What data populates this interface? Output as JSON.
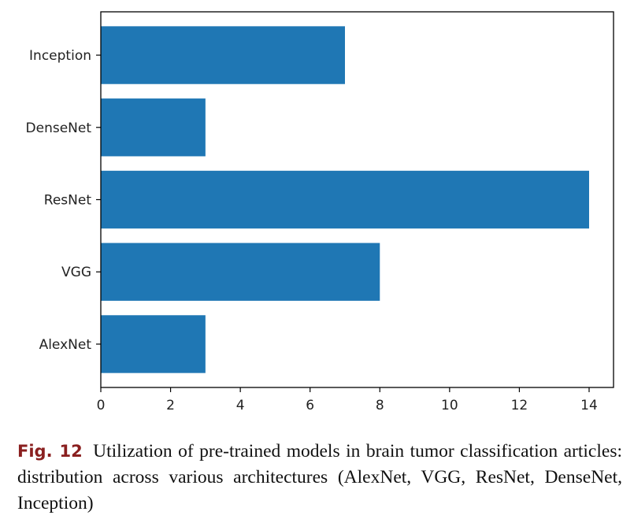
{
  "chart_data": {
    "type": "bar",
    "orientation": "horizontal",
    "categories": [
      "AlexNet",
      "VGG",
      "ResNet",
      "DenseNet",
      "Inception"
    ],
    "values": [
      3,
      8,
      14,
      3,
      7
    ],
    "xlim": [
      0,
      14.7
    ],
    "xticks": [
      0,
      2,
      4,
      6,
      8,
      10,
      12,
      14
    ],
    "title": "",
    "xlabel": "",
    "ylabel": "",
    "grid": false,
    "bar_color": "#1f77b4"
  },
  "caption": {
    "label": "Fig. 12",
    "text": "Utilization of pre-trained models in brain tumor classification articles: distribution across various architectures (AlexNet, VGG, ResNet, DenseNet, Inception)"
  }
}
